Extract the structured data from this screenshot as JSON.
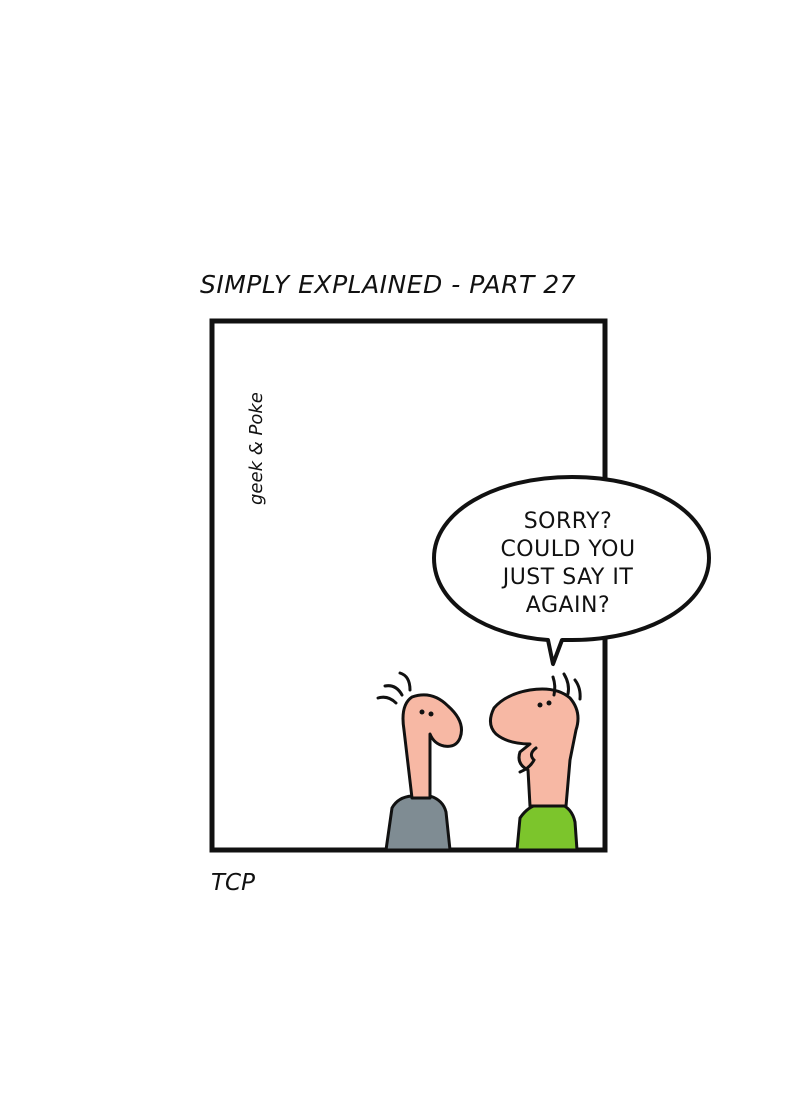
{
  "comic": {
    "title": "SIMPLY EXPLAINED - PART 27",
    "credit": "TCP",
    "signature": "geek & Poke",
    "speech_bubble": {
      "lines": [
        "SORRY?",
        "COULD YOU",
        "JUST SAY IT",
        "AGAIN?"
      ]
    },
    "characters": [
      {
        "name": "listener",
        "shirt_color": "#7f8c93"
      },
      {
        "name": "speaker",
        "shirt_color": "#7cc52c"
      }
    ],
    "colors": {
      "skin": "#f7b8a4",
      "outline": "#111111",
      "background": "#ffffff"
    }
  }
}
